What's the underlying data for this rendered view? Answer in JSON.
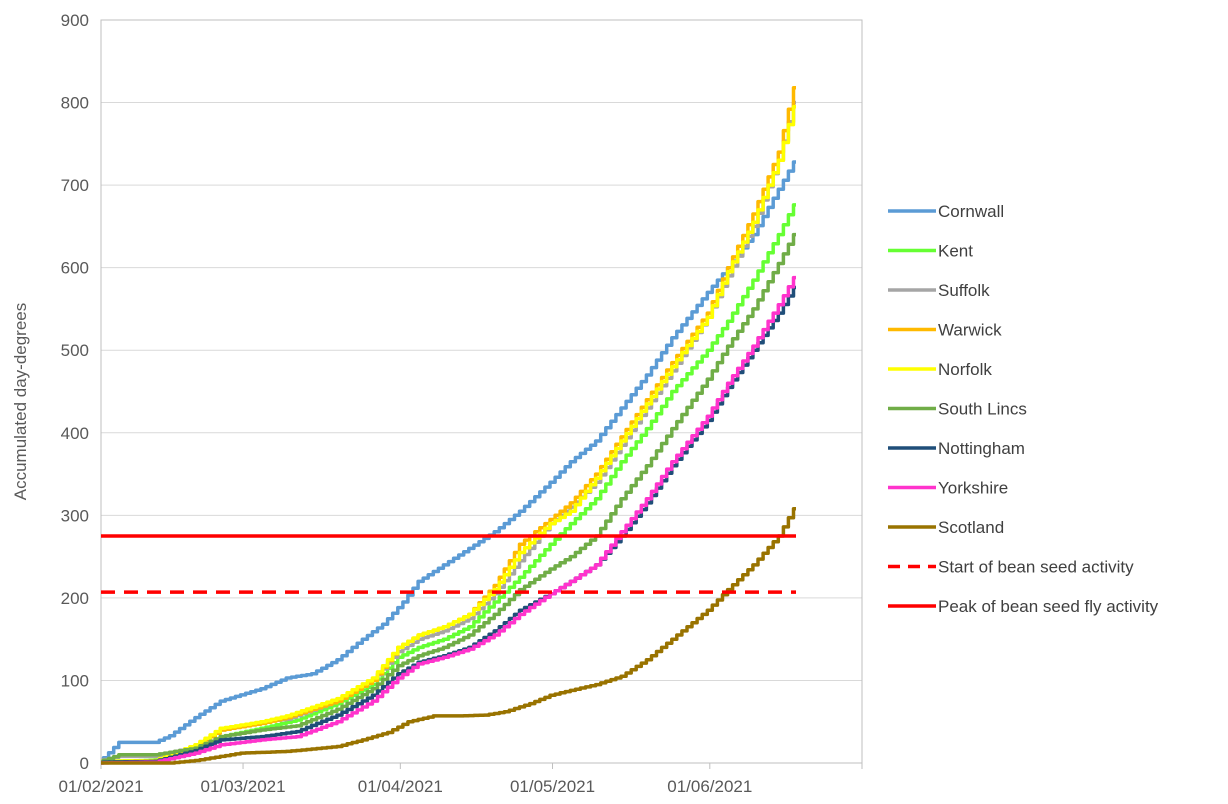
{
  "chart_data": {
    "type": "line",
    "title": "",
    "xlabel": "",
    "ylabel": "Accumulated day-degrees",
    "ylim": [
      0,
      900
    ],
    "yticks": [
      "0",
      "100",
      "200",
      "300",
      "400",
      "500",
      "600",
      "700",
      "800",
      "900"
    ],
    "xlim": [
      "2021-02-01",
      "2021-07-01"
    ],
    "xticks": [
      {
        "date": "2021-02-01",
        "label": "01/02/2021"
      },
      {
        "date": "2021-03-01",
        "label": "01/03/2021"
      },
      {
        "date": "2021-04-01",
        "label": "01/04/2021"
      },
      {
        "date": "2021-05-01",
        "label": "01/05/2021"
      },
      {
        "date": "2021-06-01",
        "label": "01/06/2021"
      }
    ],
    "grid": "horizontal",
    "legend": "right",
    "series": [
      {
        "name": "Cornwall",
        "color": "#5B9BD5",
        "dash": "solid",
        "points": [
          [
            "2021-02-01",
            0
          ],
          [
            "2021-02-05",
            25
          ],
          [
            "2021-02-12",
            25
          ],
          [
            "2021-02-15",
            33
          ],
          [
            "2021-02-20",
            55
          ],
          [
            "2021-02-25",
            75
          ],
          [
            "2021-03-05",
            90
          ],
          [
            "2021-03-10",
            103
          ],
          [
            "2021-03-15",
            108
          ],
          [
            "2021-03-20",
            125
          ],
          [
            "2021-03-25",
            150
          ],
          [
            "2021-03-29",
            168
          ],
          [
            "2021-04-02",
            195
          ],
          [
            "2021-04-05",
            220
          ],
          [
            "2021-04-10",
            240
          ],
          [
            "2021-04-15",
            260
          ],
          [
            "2021-04-20",
            280
          ],
          [
            "2021-04-25",
            305
          ],
          [
            "2021-05-01",
            340
          ],
          [
            "2021-05-05",
            365
          ],
          [
            "2021-05-10",
            390
          ],
          [
            "2021-05-15",
            430
          ],
          [
            "2021-05-20",
            470
          ],
          [
            "2021-05-25",
            515
          ],
          [
            "2021-06-01",
            570
          ],
          [
            "2021-06-05",
            600
          ],
          [
            "2021-06-10",
            640
          ],
          [
            "2021-06-15",
            695
          ],
          [
            "2021-06-18",
            728
          ]
        ]
      },
      {
        "name": "Kent",
        "color": "#66FF33",
        "dash": "solid",
        "points": [
          [
            "2021-02-01",
            2
          ],
          [
            "2021-02-10",
            3
          ],
          [
            "2021-02-15",
            5
          ],
          [
            "2021-02-20",
            15
          ],
          [
            "2021-02-25",
            32
          ],
          [
            "2021-03-05",
            42
          ],
          [
            "2021-03-12",
            52
          ],
          [
            "2021-03-20",
            72
          ],
          [
            "2021-03-27",
            95
          ],
          [
            "2021-04-01",
            128
          ],
          [
            "2021-04-05",
            140
          ],
          [
            "2021-04-10",
            150
          ],
          [
            "2021-04-15",
            165
          ],
          [
            "2021-04-20",
            195
          ],
          [
            "2021-04-25",
            225
          ],
          [
            "2021-05-01",
            265
          ],
          [
            "2021-05-05",
            290
          ],
          [
            "2021-05-10",
            320
          ],
          [
            "2021-05-15",
            365
          ],
          [
            "2021-05-20",
            405
          ],
          [
            "2021-05-25",
            450
          ],
          [
            "2021-06-01",
            500
          ],
          [
            "2021-06-05",
            535
          ],
          [
            "2021-06-10",
            585
          ],
          [
            "2021-06-15",
            640
          ],
          [
            "2021-06-18",
            676
          ]
        ]
      },
      {
        "name": "Suffolk",
        "color": "#A5A5A5",
        "dash": "solid",
        "points": [
          [
            "2021-02-01",
            3
          ],
          [
            "2021-02-05",
            8
          ],
          [
            "2021-02-12",
            8
          ],
          [
            "2021-02-20",
            20
          ],
          [
            "2021-02-25",
            40
          ],
          [
            "2021-03-05",
            50
          ],
          [
            "2021-03-10",
            53
          ],
          [
            "2021-03-20",
            75
          ],
          [
            "2021-03-27",
            100
          ],
          [
            "2021-04-01",
            135
          ],
          [
            "2021-04-05",
            150
          ],
          [
            "2021-04-10",
            160
          ],
          [
            "2021-04-15",
            175
          ],
          [
            "2021-04-20",
            205
          ],
          [
            "2021-04-25",
            245
          ],
          [
            "2021-05-01",
            290
          ],
          [
            "2021-05-05",
            310
          ],
          [
            "2021-05-10",
            340
          ],
          [
            "2021-05-15",
            385
          ],
          [
            "2021-05-20",
            430
          ],
          [
            "2021-05-25",
            475
          ],
          [
            "2021-06-01",
            540
          ],
          [
            "2021-06-05",
            590
          ],
          [
            "2021-06-10",
            650
          ],
          [
            "2021-06-15",
            730
          ],
          [
            "2021-06-18",
            800
          ]
        ]
      },
      {
        "name": "Warwick",
        "color": "#FFB900",
        "dash": "solid",
        "points": [
          [
            "2021-02-01",
            1
          ],
          [
            "2021-02-12",
            2
          ],
          [
            "2021-02-20",
            20
          ],
          [
            "2021-02-25",
            40
          ],
          [
            "2021-03-05",
            48
          ],
          [
            "2021-03-10",
            55
          ],
          [
            "2021-03-20",
            75
          ],
          [
            "2021-03-27",
            100
          ],
          [
            "2021-04-01",
            140
          ],
          [
            "2021-04-05",
            155
          ],
          [
            "2021-04-10",
            165
          ],
          [
            "2021-04-15",
            180
          ],
          [
            "2021-04-20",
            215
          ],
          [
            "2021-04-25",
            265
          ],
          [
            "2021-05-01",
            295
          ],
          [
            "2021-05-05",
            315
          ],
          [
            "2021-05-10",
            350
          ],
          [
            "2021-05-15",
            395
          ],
          [
            "2021-05-20",
            440
          ],
          [
            "2021-05-25",
            485
          ],
          [
            "2021-06-01",
            545
          ],
          [
            "2021-06-05",
            600
          ],
          [
            "2021-06-10",
            665
          ],
          [
            "2021-06-15",
            740
          ],
          [
            "2021-06-18",
            818
          ]
        ]
      },
      {
        "name": "Norfolk",
        "color": "#FFFF00",
        "dash": "solid",
        "points": [
          [
            "2021-02-01",
            2
          ],
          [
            "2021-02-12",
            3
          ],
          [
            "2021-02-20",
            22
          ],
          [
            "2021-02-25",
            42
          ],
          [
            "2021-03-05",
            50
          ],
          [
            "2021-03-10",
            57
          ],
          [
            "2021-03-20",
            78
          ],
          [
            "2021-03-27",
            103
          ],
          [
            "2021-04-01",
            140
          ],
          [
            "2021-04-05",
            155
          ],
          [
            "2021-04-10",
            165
          ],
          [
            "2021-04-15",
            180
          ],
          [
            "2021-04-20",
            210
          ],
          [
            "2021-04-25",
            255
          ],
          [
            "2021-05-01",
            290
          ],
          [
            "2021-05-05",
            305
          ],
          [
            "2021-05-10",
            345
          ],
          [
            "2021-05-15",
            390
          ],
          [
            "2021-05-20",
            435
          ],
          [
            "2021-05-25",
            480
          ],
          [
            "2021-06-01",
            540
          ],
          [
            "2021-06-05",
            595
          ],
          [
            "2021-06-10",
            655
          ],
          [
            "2021-06-15",
            730
          ],
          [
            "2021-06-18",
            795
          ]
        ]
      },
      {
        "name": "South Lincs",
        "color": "#70AD47",
        "dash": "solid",
        "points": [
          [
            "2021-02-01",
            1
          ],
          [
            "2021-02-05",
            10
          ],
          [
            "2021-02-12",
            10
          ],
          [
            "2021-02-20",
            18
          ],
          [
            "2021-02-25",
            32
          ],
          [
            "2021-03-05",
            40
          ],
          [
            "2021-03-12",
            45
          ],
          [
            "2021-03-20",
            65
          ],
          [
            "2021-03-27",
            90
          ],
          [
            "2021-04-01",
            118
          ],
          [
            "2021-04-05",
            130
          ],
          [
            "2021-04-10",
            140
          ],
          [
            "2021-04-15",
            155
          ],
          [
            "2021-04-20",
            180
          ],
          [
            "2021-04-25",
            210
          ],
          [
            "2021-05-01",
            235
          ],
          [
            "2021-05-05",
            250
          ],
          [
            "2021-05-10",
            275
          ],
          [
            "2021-05-15",
            320
          ],
          [
            "2021-05-20",
            360
          ],
          [
            "2021-05-25",
            405
          ],
          [
            "2021-06-01",
            465
          ],
          [
            "2021-06-05",
            505
          ],
          [
            "2021-06-10",
            550
          ],
          [
            "2021-06-15",
            605
          ],
          [
            "2021-06-18",
            640
          ]
        ]
      },
      {
        "name": "Nottingham",
        "color": "#1F4E79",
        "dash": "solid",
        "points": [
          [
            "2021-02-01",
            1
          ],
          [
            "2021-02-12",
            2
          ],
          [
            "2021-02-20",
            15
          ],
          [
            "2021-02-25",
            28
          ],
          [
            "2021-03-05",
            32
          ],
          [
            "2021-03-12",
            38
          ],
          [
            "2021-03-20",
            58
          ],
          [
            "2021-03-27",
            82
          ],
          [
            "2021-04-01",
            108
          ],
          [
            "2021-04-05",
            122
          ],
          [
            "2021-04-10",
            130
          ],
          [
            "2021-04-15",
            140
          ],
          [
            "2021-04-20",
            160
          ],
          [
            "2021-04-25",
            185
          ],
          [
            "2021-05-01",
            205
          ],
          [
            "2021-05-05",
            220
          ],
          [
            "2021-05-10",
            240
          ],
          [
            "2021-05-15",
            275
          ],
          [
            "2021-05-20",
            315
          ],
          [
            "2021-05-25",
            360
          ],
          [
            "2021-06-01",
            415
          ],
          [
            "2021-06-05",
            455
          ],
          [
            "2021-06-10",
            500
          ],
          [
            "2021-06-15",
            545
          ],
          [
            "2021-06-18",
            576
          ]
        ]
      },
      {
        "name": "Yorkshire",
        "color": "#FF33CC",
        "dash": "solid",
        "points": [
          [
            "2021-02-01",
            0
          ],
          [
            "2021-02-12",
            1
          ],
          [
            "2021-02-20",
            12
          ],
          [
            "2021-02-25",
            22
          ],
          [
            "2021-03-05",
            28
          ],
          [
            "2021-03-12",
            32
          ],
          [
            "2021-03-20",
            50
          ],
          [
            "2021-03-27",
            75
          ],
          [
            "2021-04-01",
            103
          ],
          [
            "2021-04-05",
            120
          ],
          [
            "2021-04-10",
            128
          ],
          [
            "2021-04-15",
            138
          ],
          [
            "2021-04-20",
            155
          ],
          [
            "2021-04-25",
            180
          ],
          [
            "2021-05-01",
            205
          ],
          [
            "2021-05-05",
            220
          ],
          [
            "2021-05-10",
            240
          ],
          [
            "2021-05-15",
            280
          ],
          [
            "2021-05-20",
            320
          ],
          [
            "2021-05-25",
            365
          ],
          [
            "2021-06-01",
            420
          ],
          [
            "2021-06-05",
            460
          ],
          [
            "2021-06-10",
            505
          ],
          [
            "2021-06-15",
            555
          ],
          [
            "2021-06-18",
            588
          ]
        ]
      },
      {
        "name": "Scotland",
        "color": "#997300",
        "dash": "solid",
        "points": [
          [
            "2021-02-01",
            0
          ],
          [
            "2021-02-15",
            0
          ],
          [
            "2021-02-20",
            3
          ],
          [
            "2021-02-25",
            8
          ],
          [
            "2021-03-01",
            12
          ],
          [
            "2021-03-10",
            14
          ],
          [
            "2021-03-15",
            17
          ],
          [
            "2021-03-20",
            20
          ],
          [
            "2021-03-25",
            28
          ],
          [
            "2021-03-30",
            37
          ],
          [
            "2021-04-03",
            50
          ],
          [
            "2021-04-08",
            57
          ],
          [
            "2021-04-13",
            57
          ],
          [
            "2021-04-18",
            58
          ],
          [
            "2021-04-22",
            62
          ],
          [
            "2021-04-27",
            72
          ],
          [
            "2021-05-01",
            82
          ],
          [
            "2021-05-05",
            88
          ],
          [
            "2021-05-10",
            95
          ],
          [
            "2021-05-15",
            105
          ],
          [
            "2021-05-20",
            125
          ],
          [
            "2021-05-25",
            150
          ],
          [
            "2021-06-01",
            185
          ],
          [
            "2021-06-05",
            210
          ],
          [
            "2021-06-10",
            240
          ],
          [
            "2021-06-15",
            275
          ],
          [
            "2021-06-18",
            308
          ]
        ]
      },
      {
        "name": "Start of bean seed activity",
        "color": "#FF0000",
        "dash": "dashed",
        "points": [
          [
            "2021-02-01",
            207
          ],
          [
            "2021-06-18",
            207
          ]
        ]
      },
      {
        "name": "Peak of bean seed fly activity",
        "color": "#FF0000",
        "dash": "solid",
        "points": [
          [
            "2021-02-01",
            275
          ],
          [
            "2021-06-18",
            275
          ]
        ]
      }
    ]
  }
}
